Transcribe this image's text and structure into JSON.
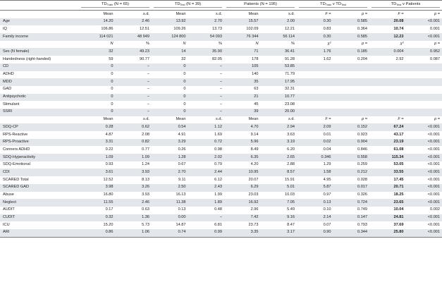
{
  "header": {
    "groups": [
      {
        "main": "TD",
        "sub": "Train",
        "rest": " (N = 65)"
      },
      {
        "main": "TD",
        "sub": "Test",
        "rest": " (N = 39)"
      },
      {
        "main": "Patients (N = 195)",
        "sub": "",
        "rest": ""
      },
      {
        "main": "TD",
        "sub": "Train",
        "rest": " v TD",
        "sub2": "Test"
      },
      {
        "main": "TD",
        "sub": "Test",
        "rest": " v Patients"
      }
    ]
  },
  "sections": [
    {
      "subheader": [
        "",
        "Mean",
        "s.d.",
        "Mean",
        "s.d.",
        "Mean",
        "s.d.",
        "F =",
        "p =",
        "F =",
        "p ="
      ],
      "rows": [
        {
          "label": "Age",
          "cells": [
            "14.20",
            "2.46",
            "13.92",
            "2.70",
            "15.57",
            "2.00",
            "0.30",
            "0.585",
            "20.08",
            "<0.001"
          ],
          "bold": [
            8
          ]
        },
        {
          "label": "IQ",
          "cells": [
            "106.86",
            "12.51",
            "109.26",
            "13.73",
            "102.09",
            "12.21",
            "0.83",
            "0.364",
            "10.74",
            "0.001"
          ],
          "bold": [
            8
          ]
        },
        {
          "label": "Family income",
          "cells": [
            "114 021",
            "48 949",
            "124 800",
            "54 093",
            "76 344",
            "56 114",
            "0.30",
            "0.585",
            "12.23",
            "<0.001"
          ],
          "bold": [
            8
          ]
        }
      ]
    },
    {
      "subheader": [
        "",
        "N",
        "%",
        "N",
        "%",
        "N",
        "%",
        "χ²",
        "p =",
        "χ²",
        "p ="
      ],
      "rows": [
        {
          "label": "Sex (N female)",
          "cells": [
            "32",
            "49.23",
            "14",
            "35.90",
            "71",
            "36.41",
            "1.76",
            "0.185",
            "0.004",
            "0.952"
          ],
          "bold": []
        },
        {
          "label": "Handedness (right-handed)",
          "cells": [
            "59",
            "90.77",
            "32",
            "82.05",
            "178",
            "91.28",
            "1.62",
            "0.204",
            "2.92",
            "0.087"
          ],
          "bold": []
        },
        {
          "label": "CD",
          "cells": [
            "0",
            "–",
            "0",
            "–",
            "105",
            "53.85",
            "",
            "",
            "",
            ""
          ],
          "bold": []
        },
        {
          "label": "ADHD",
          "cells": [
            "0",
            "–",
            "0",
            "–",
            "140",
            "71.79",
            "",
            "",
            "",
            ""
          ],
          "bold": []
        },
        {
          "label": "MDD",
          "cells": [
            "0",
            "–",
            "0",
            "–",
            "35",
            "17.95",
            "",
            "",
            "",
            ""
          ],
          "bold": []
        },
        {
          "label": "GAD",
          "cells": [
            "0",
            "–",
            "0",
            "–",
            "63",
            "32.31",
            "",
            "",
            "",
            ""
          ],
          "bold": []
        },
        {
          "label": "Antipsychotic",
          "cells": [
            "0",
            "–",
            "0",
            "–",
            "21",
            "10.77",
            "",
            "",
            "",
            ""
          ],
          "bold": []
        },
        {
          "label": "Stimulant",
          "cells": [
            "0",
            "–",
            "0",
            "–",
            "45",
            "23.08",
            "",
            "",
            "",
            ""
          ],
          "bold": []
        },
        {
          "label": "SSRI",
          "cells": [
            "0",
            "–",
            "0",
            "–",
            "39",
            "20.00",
            "",
            "",
            "",
            ""
          ],
          "bold": []
        }
      ]
    },
    {
      "subheader": [
        "",
        "Mean",
        "s.d.",
        "Mean",
        "s.d.",
        "Mean",
        "s.d.",
        "F =",
        "p =",
        "F =",
        "p ="
      ],
      "rows": [
        {
          "label": "SDQ-CP",
          "cells": [
            "0.28",
            "0.62",
            "0.54",
            "1.12",
            "4.70",
            "2.94",
            "2.09",
            "0.152",
            "67.24",
            "<0.001"
          ],
          "bold": [
            8
          ]
        },
        {
          "label": "RPS-Reactive",
          "cells": [
            "4.87",
            "2.08",
            "4.91",
            "1.69",
            "9.14",
            "3.63",
            "0.01",
            "0.923",
            "43.17",
            "<0.001"
          ],
          "bold": [
            8
          ]
        },
        {
          "label": "RPS-Proactive",
          "cells": [
            "3.31",
            "0.82",
            "3.29",
            "0.72",
            "5.96",
            "3.19",
            "0.02",
            "0.904",
            "23.19",
            "<0.001"
          ],
          "bold": [
            8
          ]
        },
        {
          "label": "Conners ADHD",
          "cells": [
            "0.22",
            "0.77",
            "0.26",
            "0.98",
            "8.49",
            "6.20",
            "0.04",
            "0.846",
            "61.08",
            "<0.001"
          ],
          "bold": [
            8
          ]
        },
        {
          "label": "SDQ-Hyperactivity",
          "cells": [
            "1.09",
            "1.09",
            "1.28",
            "2.02",
            "6.35",
            "2.65",
            "0.346",
            "0.558",
            "115.34",
            "<0.001"
          ],
          "bold": [
            8
          ]
        },
        {
          "label": "SDQ-Emotional",
          "cells": [
            "0.93",
            "1.24",
            "0.67",
            "0.79",
            "4.20",
            "2.88",
            "1.29",
            "0.259",
            "53.05",
            "<0.001"
          ],
          "bold": [
            8
          ]
        },
        {
          "label": "CDI",
          "cells": [
            "3.61",
            "3.93",
            "2.70",
            "2.44",
            "10.95",
            "8.57",
            "1.58",
            "0.212",
            "33.55",
            "<0.001"
          ],
          "bold": [
            8
          ]
        },
        {
          "label": "SCARED Total",
          "cells": [
            "12.52",
            "8.13",
            "9.11",
            "6.12",
            "20.07",
            "15.91",
            "4.95",
            "0.028",
            "17.45",
            "<0.001"
          ],
          "bold": [
            8
          ]
        },
        {
          "label": "SCARED GAD",
          "cells": [
            "3.98",
            "3.26",
            "2.50",
            "2.43",
            "6.29",
            "5.01",
            "5.87",
            "0.017",
            "20.71",
            "<0.001"
          ],
          "bold": [
            8
          ]
        },
        {
          "label": "Abuse",
          "cells": [
            "16.80",
            "3.93",
            "16.13",
            "1.99",
            "23.03",
            "10.03",
            "0.97",
            "0.326",
            "18.25",
            "<0.001"
          ],
          "bold": [
            8
          ]
        },
        {
          "label": "Neglect",
          "cells": [
            "11.55",
            "2.46",
            "11.38",
            "1.89",
            "16.92",
            "7.05",
            "0.13",
            "0.724",
            "23.65",
            "<0.001"
          ],
          "bold": [
            8
          ]
        },
        {
          "label": "AUDIT",
          "cells": [
            "0.17",
            "0.63",
            "0.13",
            "0.48",
            "2.96",
            "5.49",
            "0.10",
            "0.749",
            "10.04",
            "0.002"
          ],
          "bold": [
            8
          ]
        },
        {
          "label": "CUDIT",
          "cells": [
            "0.32",
            "1.36",
            "0.00",
            "–",
            "7.42",
            "9.16",
            "2.14",
            "0.147",
            "24.81",
            "<0.001"
          ],
          "bold": [
            8
          ]
        },
        {
          "label": "ICU",
          "cells": [
            "15.20",
            "5.73",
            "14.87",
            "6.81",
            "23.73",
            "8.47",
            "0.07",
            "0.793",
            "37.69",
            "<0.001"
          ],
          "bold": [
            8
          ]
        },
        {
          "label": "ARI",
          "cells": [
            "0.86",
            "1.06",
            "0.74",
            "0.99",
            "3.35",
            "3.17",
            "0.90",
            "0.344",
            "25.80",
            "<0.001"
          ],
          "bold": [
            8
          ]
        }
      ]
    }
  ]
}
